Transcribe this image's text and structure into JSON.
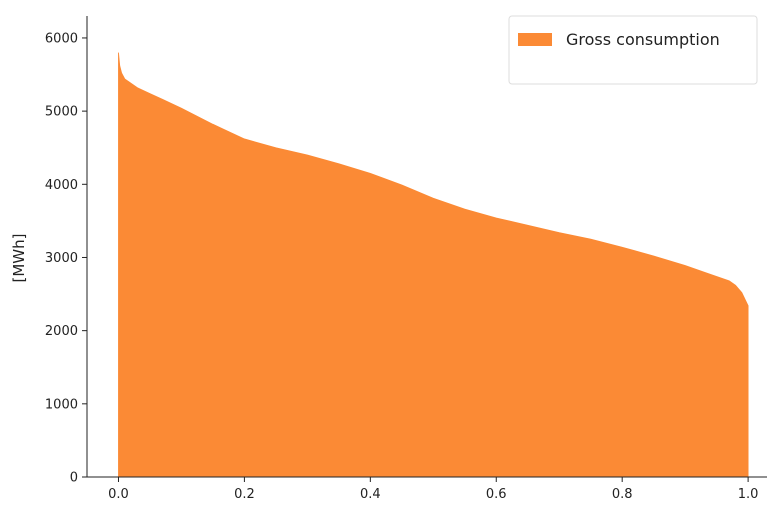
{
  "chart_data": {
    "type": "area",
    "title": "",
    "xlabel": "",
    "ylabel": "[MWh]",
    "xlim": [
      -0.05,
      1.03
    ],
    "ylim": [
      0,
      6300
    ],
    "xticks": [
      0.0,
      0.2,
      0.4,
      0.6,
      0.8,
      1.0
    ],
    "xtick_labels": [
      "0.0",
      "0.2",
      "0.4",
      "0.6",
      "0.8",
      "1.0"
    ],
    "yticks": [
      0,
      1000,
      2000,
      3000,
      4000,
      5000,
      6000
    ],
    "ytick_labels": [
      "0",
      "1000",
      "2000",
      "3000",
      "4000",
      "5000",
      "6000"
    ],
    "grid": false,
    "legend_position": "top-right",
    "series": [
      {
        "name": "Gross consumption",
        "color": "#fb8a35",
        "x": [
          0.0,
          0.002,
          0.005,
          0.01,
          0.02,
          0.03,
          0.05,
          0.07,
          0.1,
          0.15,
          0.2,
          0.25,
          0.3,
          0.35,
          0.4,
          0.45,
          0.5,
          0.55,
          0.6,
          0.65,
          0.7,
          0.75,
          0.8,
          0.85,
          0.9,
          0.93,
          0.95,
          0.97,
          0.98,
          0.99,
          0.995,
          1.0
        ],
        "values": [
          5800,
          5620,
          5520,
          5440,
          5380,
          5320,
          5240,
          5160,
          5040,
          4820,
          4620,
          4500,
          4400,
          4280,
          4150,
          3990,
          3810,
          3660,
          3540,
          3440,
          3340,
          3250,
          3140,
          3020,
          2890,
          2800,
          2740,
          2680,
          2620,
          2520,
          2430,
          2340
        ]
      }
    ]
  }
}
